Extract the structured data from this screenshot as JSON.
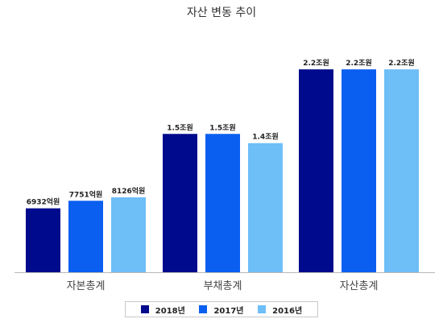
{
  "chart_data": {
    "type": "bar",
    "title": "자산 변동 추이",
    "categories": [
      "자본총계",
      "부채총계",
      "자산총계"
    ],
    "series": [
      {
        "name": "2018년",
        "color": "#000a8c",
        "values": [
          0.6932,
          1.5,
          2.2
        ],
        "labels": [
          "6932억원",
          "1.5조원",
          "2.2조원"
        ]
      },
      {
        "name": "2017년",
        "color": "#0a5ff0",
        "values": [
          0.7751,
          1.5,
          2.2
        ],
        "labels": [
          "7751억원",
          "1.5조원",
          "2.2조원"
        ]
      },
      {
        "name": "2016년",
        "color": "#6ebef8",
        "values": [
          0.8126,
          1.4,
          2.2
        ],
        "labels": [
          "8126억원",
          "1.4조원",
          "2.2조원"
        ]
      }
    ],
    "unit": "조원",
    "legend_position": "bottom",
    "grid": false
  }
}
